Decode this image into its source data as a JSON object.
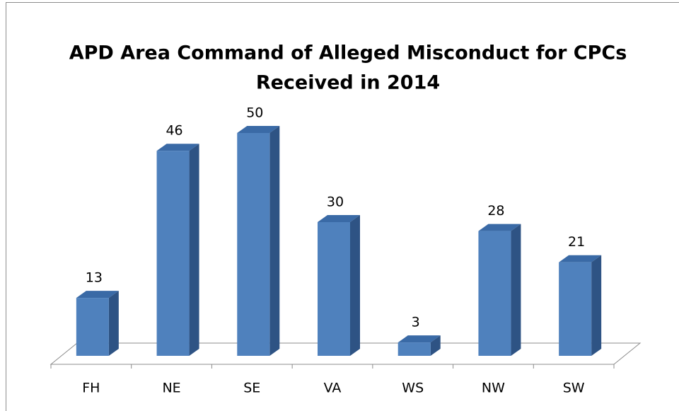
{
  "chart_data": {
    "type": "bar3d",
    "title": [
      "APD Area Command of Alleged Misconduct for CPCs",
      "Received in 2014"
    ],
    "categories": [
      "FH",
      "NE",
      "SE",
      "VA",
      "WS",
      "NW",
      "SW"
    ],
    "values": [
      13,
      46,
      50,
      30,
      3,
      28,
      21
    ],
    "color": "#4f81bd"
  }
}
